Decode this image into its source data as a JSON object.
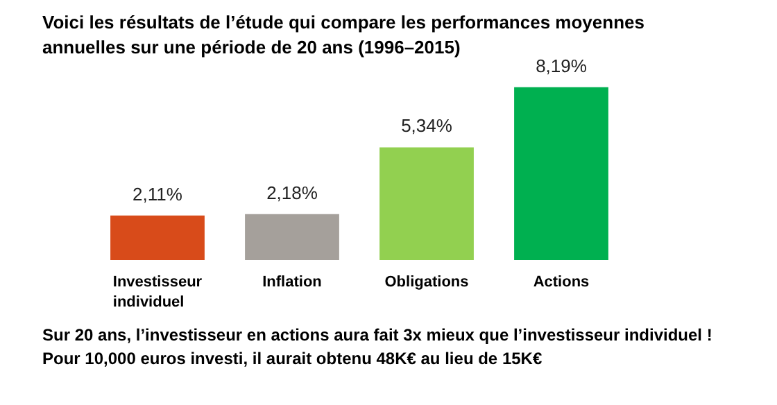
{
  "chart_data": {
    "type": "bar",
    "title": "Voici les résultats de l’étude qui compare les performances moyennes annuelles sur une période de 20 ans (1996–2015)",
    "categories": [
      "Investisseur individuel",
      "Inflation",
      "Obligations",
      "Actions"
    ],
    "values": [
      2.11,
      2.18,
      5.34,
      8.19
    ],
    "colors": [
      "#d84b1a",
      "#a5a09b",
      "#92d050",
      "#00b050"
    ],
    "value_labels": [
      "2,11%",
      "2,18%",
      "5,34%",
      "8,19%"
    ],
    "annotations": [
      "Sur 20 ans, l’investisseur en actions aura fait 3x mieux que l’investisseur individuel !",
      "Pour 10,000 euros investi, il aurait obtenu 48K€ au lieu de 15K€"
    ],
    "grid": false
  }
}
